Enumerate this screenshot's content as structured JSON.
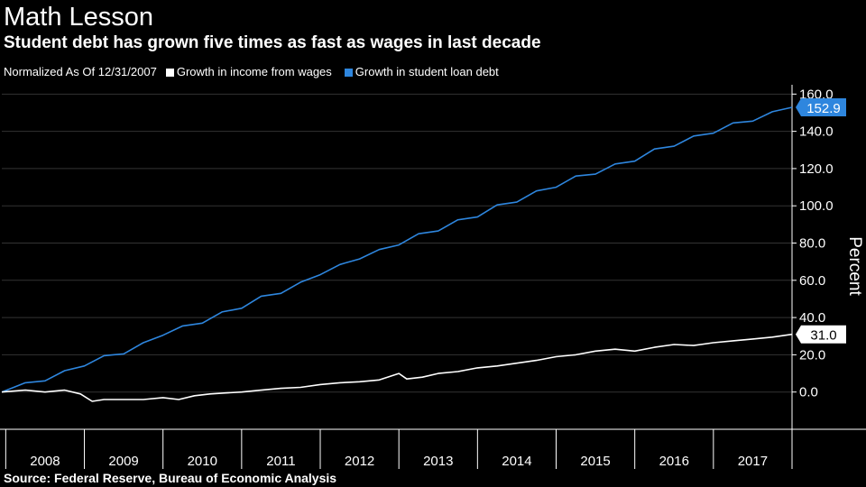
{
  "header": {
    "title": "Math Lesson",
    "subtitle": "Student debt has grown five times as fast as wages in last decade"
  },
  "legend": {
    "note": "Normalized As Of 12/31/2007",
    "items": [
      {
        "label": "Growth in income from wages",
        "color": "#ffffff"
      },
      {
        "label": "Growth in student loan debt",
        "color": "#2e86de"
      }
    ]
  },
  "source": "Source: Federal Reserve, Bureau of Economic Analysis",
  "colors": {
    "background": "#000000",
    "debt_line": "#2e86de",
    "wages_line": "#ffffff",
    "grid": "#333333"
  },
  "chart_data": {
    "type": "line",
    "ylabel": "Percent",
    "ylim": [
      -20,
      165
    ],
    "yticks": [
      "160.0",
      "140.0",
      "120.0",
      "100.0",
      "80.0",
      "60.0",
      "40.0",
      "20.0",
      "0.0"
    ],
    "xlim": [
      2007.95,
      2018.0
    ],
    "xtick_labels": [
      "2008",
      "2009",
      "2010",
      "2011",
      "2012",
      "2013",
      "2014",
      "2015",
      "2016",
      "2017"
    ],
    "grid": "horizontal",
    "series": [
      {
        "name": "Growth in student loan debt",
        "color": "#2e86de",
        "end_label": "152.9",
        "x": [
          2007.95,
          2008.25,
          2008.5,
          2008.75,
          2009.0,
          2009.25,
          2009.5,
          2009.75,
          2010.0,
          2010.25,
          2010.5,
          2010.75,
          2011.0,
          2011.25,
          2011.5,
          2011.75,
          2012.0,
          2012.25,
          2012.5,
          2012.75,
          2013.0,
          2013.25,
          2013.5,
          2013.75,
          2014.0,
          2014.25,
          2014.5,
          2014.75,
          2015.0,
          2015.25,
          2015.5,
          2015.75,
          2016.0,
          2016.25,
          2016.5,
          2016.75,
          2017.0,
          2017.25,
          2017.5,
          2017.75,
          2018.0
        ],
        "values": [
          0,
          5,
          6,
          11.5,
          14,
          19.5,
          20.5,
          26.5,
          30.5,
          35.5,
          37,
          43,
          45,
          51.5,
          53,
          59,
          63,
          68.5,
          71.5,
          76.5,
          79,
          85,
          86.5,
          92.5,
          94,
          100.5,
          102,
          108,
          110,
          116,
          117,
          122.5,
          124,
          130.5,
          132,
          137.5,
          139,
          144.5,
          145.5,
          150.5,
          152.9
        ]
      },
      {
        "name": "Growth in income from wages",
        "color": "#ffffff",
        "end_label": "31.0",
        "x": [
          2007.95,
          2008.25,
          2008.5,
          2008.75,
          2008.95,
          2009.1,
          2009.25,
          2009.5,
          2009.75,
          2010.0,
          2010.2,
          2010.4,
          2010.6,
          2010.8,
          2011.0,
          2011.25,
          2011.5,
          2011.75,
          2012.0,
          2012.25,
          2012.5,
          2012.75,
          2013.0,
          2013.1,
          2013.3,
          2013.5,
          2013.75,
          2014.0,
          2014.25,
          2014.5,
          2014.75,
          2015.0,
          2015.25,
          2015.5,
          2015.75,
          2016.0,
          2016.25,
          2016.5,
          2016.75,
          2017.0,
          2017.25,
          2017.5,
          2017.75,
          2018.0
        ],
        "values": [
          0,
          1,
          0,
          1,
          -1,
          -5,
          -4,
          -4,
          -4,
          -3,
          -4,
          -2,
          -1,
          -0.5,
          0,
          1,
          2,
          2.5,
          4,
          5,
          5.5,
          6.5,
          10,
          7,
          8,
          10,
          11,
          13,
          14,
          15.5,
          17,
          19,
          20,
          22,
          23,
          22,
          24,
          25.5,
          25,
          26.5,
          27.5,
          28.5,
          29.5,
          31.0
        ]
      }
    ]
  }
}
